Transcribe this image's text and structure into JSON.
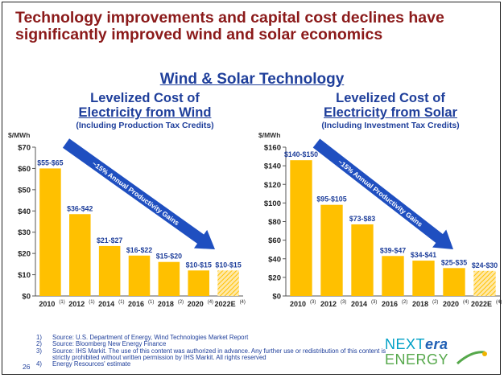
{
  "slide": {
    "title": "Technology improvements and capital cost declines have significantly improved wind and solar economics",
    "section_heading": "Wind & Solar Technology",
    "page_number": "26"
  },
  "colors": {
    "title": "#8b1a1a",
    "blue": "#1f3f9b",
    "bar": "#ffc000",
    "estimate_bar": "#ffc000",
    "arrow": "#1f4fc0"
  },
  "footnotes": [
    {
      "num": "1)",
      "text": "Source: U.S. Department of Energy, Wind Technologies Market Report"
    },
    {
      "num": "2)",
      "text": "Source: Bloomberg New Energy Finance"
    },
    {
      "num": "3)",
      "text": "Source: IHS Markit. The use of this content was authorized in advance. Any further use or redistribution of this content is strictly prohibited without written permission by IHS Markit. All rights reserved"
    },
    {
      "num": "4)",
      "text": "Energy Resources' estimate"
    }
  ],
  "logo": {
    "next": "NEXT",
    "era": "era",
    "energy": "ENERGY"
  },
  "chart_data": [
    {
      "type": "bar",
      "title_line1": "Levelized Cost of",
      "title_line2": "Electricity from Wind",
      "subtitle": "(Including Production Tax Credits)",
      "ylabel": "$/MWh",
      "ylim": [
        0,
        70
      ],
      "yticks": [
        0,
        10,
        20,
        30,
        40,
        50,
        60,
        70
      ],
      "ytick_labels": [
        "$0",
        "$10",
        "$20",
        "$30",
        "$40",
        "$50",
        "$60",
        "$70"
      ],
      "categories": [
        "2010",
        "2012",
        "2014",
        "2016",
        "2018",
        "2020",
        "2022E"
      ],
      "category_notes": [
        "(1)",
        "(1)",
        "(1)",
        "(1)",
        "(2)",
        "(4)",
        "(4)"
      ],
      "values": [
        60,
        38.5,
        23.5,
        19,
        16,
        12,
        12
      ],
      "range_labels": [
        "$55-$65",
        "$36-$42",
        "$21-$27",
        "$16-$22",
        "$15-$20",
        "$10-$15",
        "$10-$15"
      ],
      "estimated": [
        false,
        false,
        false,
        false,
        false,
        false,
        true
      ],
      "arrow_label": "~15% Annual Productivity Gains"
    },
    {
      "type": "bar",
      "title_line1": "Levelized Cost of",
      "title_line2": "Electricity from Solar",
      "subtitle": "(Including Investment Tax Credits)",
      "ylabel": "$/MWh",
      "ylim": [
        0,
        160
      ],
      "yticks": [
        0,
        20,
        40,
        60,
        80,
        100,
        120,
        140,
        160
      ],
      "ytick_labels": [
        "$0",
        "$20",
        "$40",
        "$60",
        "$80",
        "$100",
        "$120",
        "$140",
        "$160"
      ],
      "categories": [
        "2010",
        "2012",
        "2014",
        "2016",
        "2018",
        "2020",
        "2022E"
      ],
      "category_notes": [
        "(3)",
        "(3)",
        "(3)",
        "(2)",
        "(2)",
        "(4)",
        "(4)"
      ],
      "values": [
        146,
        98,
        77,
        43,
        38,
        30,
        27
      ],
      "range_labels": [
        "$140-$150",
        "$95-$105",
        "$73-$83",
        "$39-$47",
        "$34-$41",
        "$25-$35",
        "$24-$30"
      ],
      "estimated": [
        false,
        false,
        false,
        false,
        false,
        false,
        true
      ],
      "arrow_label": "~15% Annual Productivity Gains"
    }
  ]
}
